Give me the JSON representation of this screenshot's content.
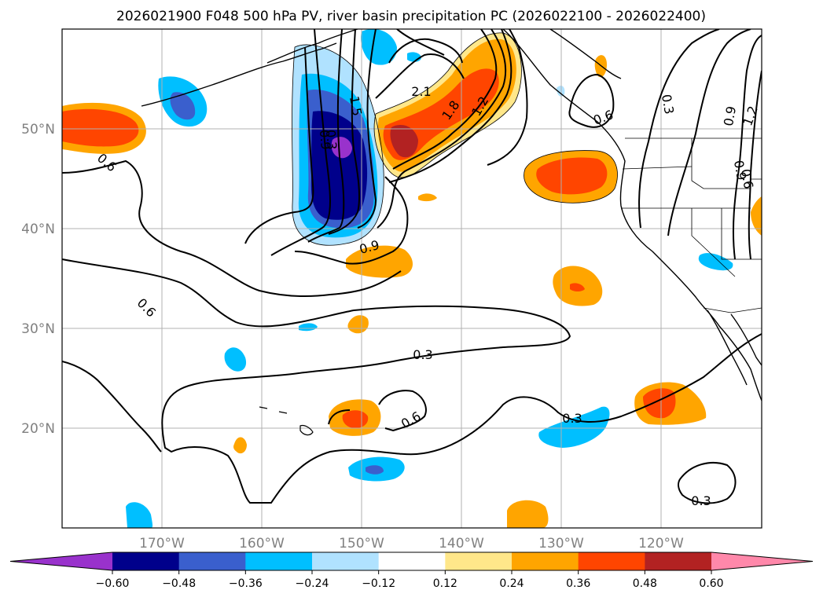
{
  "title": "2026021900 F048 500 hPa PV, river basin precipitation PC (2026022100 - 2026022400)",
  "lon_labels": [
    "170°W",
    "160°W",
    "150°W",
    "140°W",
    "130°W",
    "120°W"
  ],
  "lat_labels": [
    "50°N",
    "40°N",
    "30°N",
    "20°N"
  ],
  "contour_labels": [
    "2.1",
    "1.8",
    "1.5",
    "1.2",
    "0.9",
    "0.6",
    "0.3",
    "0.9",
    "0.6",
    "0.3",
    "0.6",
    "0.3",
    "0.3",
    "0.9",
    "1.2",
    "0.6",
    "0.9",
    "0.3",
    "0.6"
  ],
  "colorbar": {
    "colors": [
      "#9932cc",
      "#00008b",
      "#3a5fcd",
      "#00bfff",
      "#b0e2ff",
      "#ffffff",
      "#ffe78a",
      "#ffa500",
      "#ff4500",
      "#b22222",
      "#ff88aa"
    ],
    "tick_labels": [
      "−0.60",
      "−0.48",
      "−0.36",
      "−0.24",
      "−0.12",
      "0.12",
      "0.24",
      "0.36",
      "0.48",
      "0.60"
    ]
  },
  "chart_data": {
    "type": "map",
    "title": "2026021900 F048 500 hPa PV, river basin precipitation PC (2026022100 - 2026022400)",
    "field_filled": "river basin precipitation PC",
    "field_contour": "500 hPa PV",
    "lon_range": [
      -180,
      -110
    ],
    "lat_range": [
      10,
      60
    ],
    "lon_ticks": [
      -170,
      -160,
      -150,
      -140,
      -130,
      -120
    ],
    "lat_ticks": [
      50,
      40,
      30,
      20
    ],
    "color_levels": [
      -0.6,
      -0.48,
      -0.36,
      -0.24,
      -0.12,
      0.12,
      0.24,
      0.36,
      0.48,
      0.6
    ],
    "contour_levels": [
      0.3,
      0.6,
      0.9,
      1.2,
      1.5,
      1.8,
      2.1
    ],
    "colorbar_extend": "both"
  }
}
